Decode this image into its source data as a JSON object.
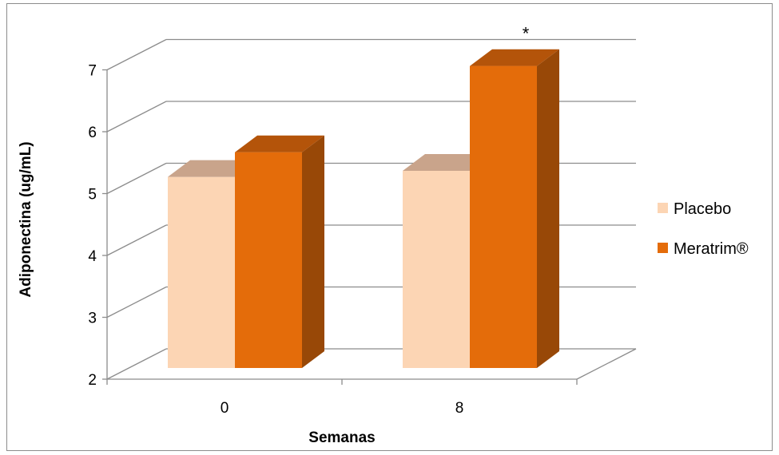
{
  "chart_data": {
    "type": "bar",
    "style": "3d-clustered-column",
    "xlabel": "Semanas",
    "ylabel": "Adiponectina (ug/mL)",
    "categories": [
      "0",
      "8"
    ],
    "ylim": [
      2,
      7
    ],
    "yticks": [
      "2",
      "3",
      "4",
      "5",
      "6",
      "7"
    ],
    "grid": true,
    "legend_position": "right",
    "series": [
      {
        "name": "Placebo",
        "values": [
          5.1,
          5.2
        ],
        "color": "#fcd5b4",
        "top_color": "#c9a48b",
        "side_color": "#c9a48b"
      },
      {
        "name": "Meratrim®",
        "values": [
          5.5,
          6.9
        ],
        "color": "#e46c0a",
        "top_color": "#b4540a",
        "side_color": "#984807"
      }
    ],
    "annotations": [
      {
        "text": "*",
        "series": "Meratrim®",
        "category": "8"
      }
    ]
  }
}
